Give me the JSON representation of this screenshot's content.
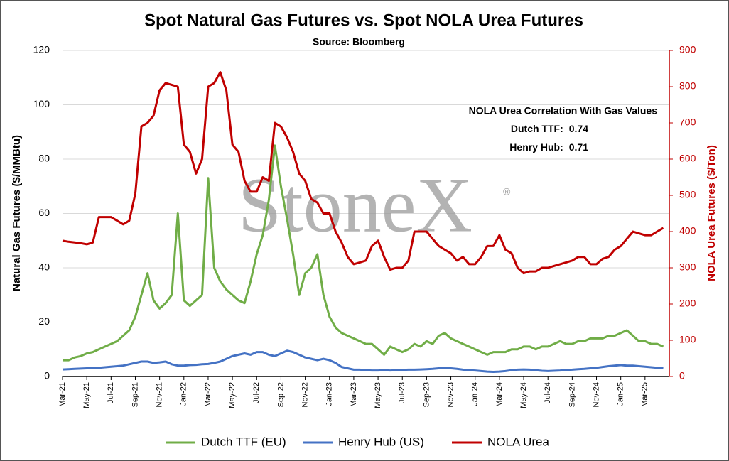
{
  "chart_data": {
    "type": "line",
    "title": "Spot Natural Gas Futures vs. Spot NOLA Urea Futures",
    "subtitle": "Source: Bloomberg",
    "ylabel": "Natural Gas Futures ($/MMBtu)",
    "y2label": "NOLA Urea Futures ($/Ton)",
    "watermark": "StoneX",
    "watermark_mark": "®",
    "annotation": {
      "title": "NOLA Urea Correlation With Gas Values",
      "rows": [
        {
          "label": "Dutch TTF:",
          "value": 0.74
        },
        {
          "label": "Henry Hub:",
          "value": 0.71
        }
      ]
    },
    "grid": true,
    "legend": "bottom",
    "xlim": [
      0,
      50
    ],
    "xticks": [
      {
        "value": 0,
        "label": "Mar-21"
      },
      {
        "value": 2,
        "label": "May-21"
      },
      {
        "value": 4,
        "label": "Jul-21"
      },
      {
        "value": 6,
        "label": "Sep-21"
      },
      {
        "value": 8,
        "label": "Nov-21"
      },
      {
        "value": 10,
        "label": "Jan-22"
      },
      {
        "value": 12,
        "label": "Mar-22"
      },
      {
        "value": 14,
        "label": "May-22"
      },
      {
        "value": 16,
        "label": "Jul-22"
      },
      {
        "value": 18,
        "label": "Sep-22"
      },
      {
        "value": 20,
        "label": "Nov-22"
      },
      {
        "value": 22,
        "label": "Jan-23"
      },
      {
        "value": 24,
        "label": "Mar-23"
      },
      {
        "value": 26,
        "label": "May-23"
      },
      {
        "value": 28,
        "label": "Jul-23"
      },
      {
        "value": 30,
        "label": "Sep-23"
      },
      {
        "value": 32,
        "label": "Nov-23"
      },
      {
        "value": 34,
        "label": "Jan-24"
      },
      {
        "value": 36,
        "label": "Mar-24"
      },
      {
        "value": 38,
        "label": "May-24"
      },
      {
        "value": 40,
        "label": "Jul-24"
      },
      {
        "value": 42,
        "label": "Sep-24"
      },
      {
        "value": 44,
        "label": "Nov-24"
      },
      {
        "value": 46,
        "label": "Jan-25"
      },
      {
        "value": 48,
        "label": "Mar-25"
      }
    ],
    "ylim": [
      0,
      120
    ],
    "yticks": [
      0,
      20,
      40,
      60,
      80,
      100,
      120
    ],
    "y2lim": [
      0,
      900
    ],
    "y2ticks": [
      0,
      100,
      200,
      300,
      400,
      500,
      600,
      700,
      800,
      900
    ],
    "x": [
      0,
      0.5,
      1,
      1.5,
      2,
      2.5,
      3,
      3.5,
      4,
      4.5,
      5,
      5.5,
      6,
      6.5,
      7,
      7.5,
      8,
      8.5,
      9,
      9.5,
      10,
      10.5,
      11,
      11.5,
      12,
      12.5,
      13,
      13.5,
      14,
      14.5,
      15,
      15.5,
      16,
      16.5,
      17,
      17.5,
      18,
      18.5,
      19,
      19.5,
      20,
      20.5,
      21,
      21.5,
      22,
      22.5,
      23,
      23.5,
      24,
      24.5,
      25,
      25.5,
      26,
      26.5,
      27,
      27.5,
      28,
      28.5,
      29,
      29.5,
      30,
      30.5,
      31,
      31.5,
      32,
      32.5,
      33,
      33.5,
      34,
      34.5,
      35,
      35.5,
      36,
      36.5,
      37,
      37.5,
      38,
      38.5,
      39,
      39.5,
      40,
      40.5,
      41,
      41.5,
      42,
      42.5,
      43,
      43.5,
      44,
      44.5,
      45,
      45.5,
      46,
      46.5,
      47,
      47.5,
      48,
      48.5,
      49,
      49.5
    ],
    "series": [
      {
        "name": "Dutch TTF (EU)",
        "color": "#70ad47",
        "values": [
          6,
          6,
          7,
          7.5,
          8.5,
          9,
          10,
          11,
          12,
          13,
          15,
          17,
          22,
          30,
          38,
          28,
          25,
          27,
          30,
          60,
          28,
          26,
          28,
          30,
          73,
          40,
          35,
          32,
          30,
          28,
          27,
          35,
          45,
          52,
          65,
          85,
          70,
          58,
          45,
          30,
          38,
          40,
          45,
          30,
          22,
          18,
          16,
          15,
          14,
          13,
          12,
          12,
          10,
          8,
          11,
          10,
          9,
          10,
          12,
          11,
          13,
          12,
          15,
          16,
          14,
          13,
          12,
          11,
          10,
          9,
          8,
          9,
          9,
          9,
          10,
          10,
          11,
          11,
          10,
          11,
          11,
          12,
          13,
          12,
          12,
          13,
          13,
          14,
          14,
          14,
          15,
          15,
          16,
          17,
          15,
          13,
          13,
          12,
          12,
          11
        ]
      },
      {
        "name": "Henry Hub (US)",
        "color": "#4472c4",
        "values": [
          2.6,
          2.7,
          2.8,
          2.9,
          3.0,
          3.1,
          3.2,
          3.4,
          3.6,
          3.8,
          4.0,
          4.5,
          5.0,
          5.5,
          5.5,
          5.0,
          5.2,
          5.5,
          4.5,
          4.0,
          4.0,
          4.2,
          4.3,
          4.5,
          4.6,
          5.0,
          5.5,
          6.5,
          7.5,
          8.0,
          8.5,
          8.0,
          9.0,
          9.0,
          8.0,
          7.5,
          8.5,
          9.5,
          9.0,
          8.0,
          7.0,
          6.5,
          6.0,
          6.5,
          6.0,
          5.0,
          3.5,
          3.0,
          2.5,
          2.5,
          2.3,
          2.2,
          2.2,
          2.3,
          2.2,
          2.3,
          2.4,
          2.5,
          2.5,
          2.6,
          2.7,
          2.8,
          3.0,
          3.2,
          3.0,
          2.8,
          2.5,
          2.3,
          2.2,
          2.0,
          1.8,
          1.7,
          1.8,
          2.0,
          2.3,
          2.5,
          2.6,
          2.5,
          2.3,
          2.1,
          2.0,
          2.1,
          2.2,
          2.4,
          2.5,
          2.7,
          2.8,
          3.0,
          3.2,
          3.5,
          3.8,
          4.0,
          4.2,
          4.0,
          4.0,
          3.8,
          3.6,
          3.4,
          3.2,
          3.0
        ]
      },
      {
        "name": "NOLA Urea",
        "color": "#c00000",
        "axis": "y2",
        "values": [
          375,
          372,
          370,
          368,
          365,
          370,
          440,
          440,
          440,
          430,
          420,
          430,
          505,
          690,
          700,
          720,
          790,
          810,
          805,
          800,
          640,
          620,
          560,
          600,
          800,
          810,
          840,
          790,
          640,
          620,
          540,
          510,
          510,
          550,
          540,
          700,
          690,
          660,
          620,
          560,
          540,
          490,
          480,
          450,
          450,
          400,
          370,
          330,
          310,
          315,
          320,
          360,
          375,
          330,
          295,
          300,
          300,
          320,
          400,
          400,
          400,
          380,
          360,
          350,
          340,
          320,
          330,
          310,
          310,
          330,
          360,
          360,
          390,
          350,
          340,
          300,
          285,
          290,
          290,
          300,
          300,
          305,
          310,
          315,
          320,
          330,
          330,
          310,
          310,
          325,
          330,
          350,
          360,
          380,
          400,
          395,
          390,
          390,
          400,
          410
        ]
      }
    ]
  }
}
